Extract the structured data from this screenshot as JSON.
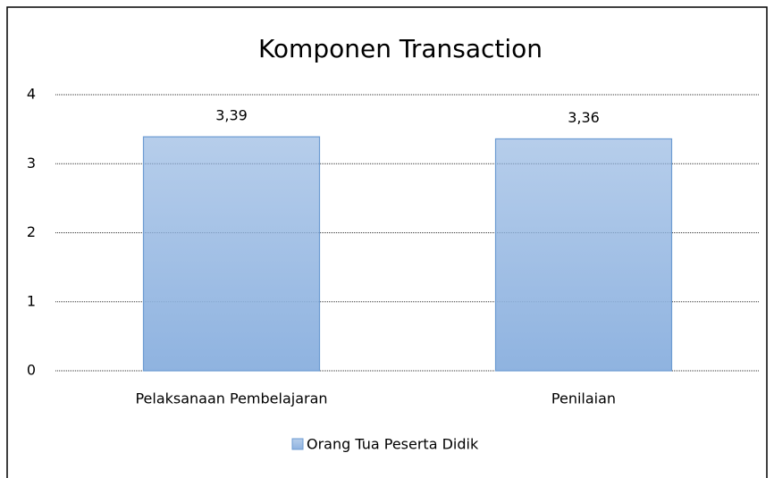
{
  "chart_data": {
    "type": "bar",
    "title": "Komponen Transaction",
    "categories": [
      "Pelaksanaan Pembelajaran",
      "Penilaian"
    ],
    "series": [
      {
        "name": "Orang Tua Peserta Didik",
        "color": "#8fb3e0",
        "values": [
          3.39,
          3.36
        ],
        "value_labels": [
          "3,39",
          "3,36"
        ]
      }
    ],
    "ylim": [
      0,
      4
    ],
    "yticks": [
      0,
      1,
      2,
      3,
      4
    ],
    "grid": true,
    "legend": "bottom"
  }
}
